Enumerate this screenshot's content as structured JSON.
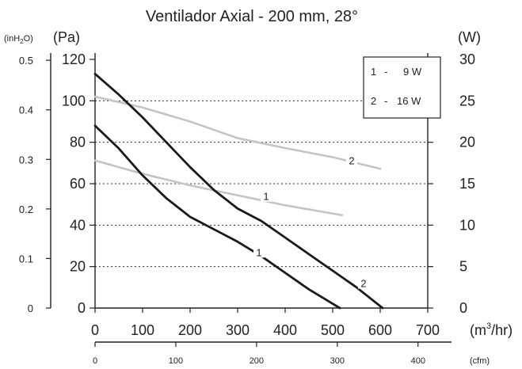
{
  "chart_data": {
    "type": "line",
    "title": "Ventilador Axial - 200 mm, 28°",
    "units": {
      "inh2o_prefix": "(inH",
      "inh2o_sub": "2",
      "inh2o_suffix": "O)",
      "pa": "(Pa)",
      "w": "(W)",
      "m3hr_prefix": "(m",
      "m3hr_sup": "3",
      "m3hr_suffix": "/hr)",
      "cfm": "(cfm)"
    },
    "axes": {
      "x_m3hr": {
        "min": 0,
        "max": 700,
        "ticks": [
          0,
          100,
          200,
          300,
          400,
          500,
          600,
          700
        ]
      },
      "x_cfm": {
        "ticks": [
          0,
          100,
          200,
          300,
          400
        ]
      },
      "y_pa": {
        "min": 0,
        "max": 120,
        "ticks": [
          0,
          20,
          40,
          60,
          80,
          100,
          120
        ]
      },
      "y_inh2o": {
        "ticks": [
          "0",
          "0.1",
          "0.2",
          "0.3",
          "0.4",
          "0.5"
        ]
      },
      "y_w": {
        "min": 0,
        "max": 30,
        "ticks": [
          0,
          5,
          10,
          15,
          20,
          25,
          30
        ]
      }
    },
    "grid_y": [
      20,
      40,
      60,
      80,
      100
    ],
    "legend": {
      "placement": "top-right",
      "entries": [
        {
          "id": "1",
          "sep": "-",
          "text": "9 W"
        },
        {
          "id": "2",
          "sep": "-",
          "text": "16 W"
        }
      ]
    },
    "series": [
      {
        "kind": "pressure",
        "label": "1",
        "label_at": [
          345,
          27
        ],
        "color": "#1a1a1a",
        "points": [
          [
            0,
            88
          ],
          [
            50,
            77
          ],
          [
            100,
            64
          ],
          [
            150,
            53
          ],
          [
            200,
            44
          ],
          [
            250,
            38
          ],
          [
            300,
            32
          ],
          [
            350,
            25
          ],
          [
            400,
            17
          ],
          [
            450,
            9
          ],
          [
            515,
            0
          ]
        ]
      },
      {
        "kind": "pressure",
        "label": "2",
        "label_at": [
          565,
          12
        ],
        "color": "#1a1a1a",
        "points": [
          [
            0,
            113
          ],
          [
            50,
            103
          ],
          [
            100,
            92
          ],
          [
            150,
            80
          ],
          [
            200,
            68
          ],
          [
            250,
            57
          ],
          [
            300,
            48
          ],
          [
            350,
            42
          ],
          [
            400,
            34
          ],
          [
            450,
            26
          ],
          [
            500,
            18
          ],
          [
            550,
            10
          ],
          [
            605,
            0
          ]
        ]
      },
      {
        "kind": "power",
        "label": "1",
        "label_at": [
          360,
          13.5
        ],
        "color": "#c4c4c4",
        "points": [
          [
            0,
            17.8
          ],
          [
            50,
            17.0
          ],
          [
            100,
            16.2
          ],
          [
            150,
            15.5
          ],
          [
            200,
            14.8
          ],
          [
            250,
            14.2
          ],
          [
            300,
            13.6
          ],
          [
            350,
            13.0
          ],
          [
            400,
            12.4
          ],
          [
            460,
            11.8
          ],
          [
            520,
            11.2
          ]
        ]
      },
      {
        "kind": "power",
        "label": "2",
        "label_at": [
          540,
          17.8
        ],
        "color": "#c4c4c4",
        "points": [
          [
            0,
            25.5
          ],
          [
            100,
            24.2
          ],
          [
            200,
            22.5
          ],
          [
            300,
            20.5
          ],
          [
            400,
            19.3
          ],
          [
            500,
            18.2
          ],
          [
            600,
            16.8
          ]
        ]
      }
    ]
  }
}
